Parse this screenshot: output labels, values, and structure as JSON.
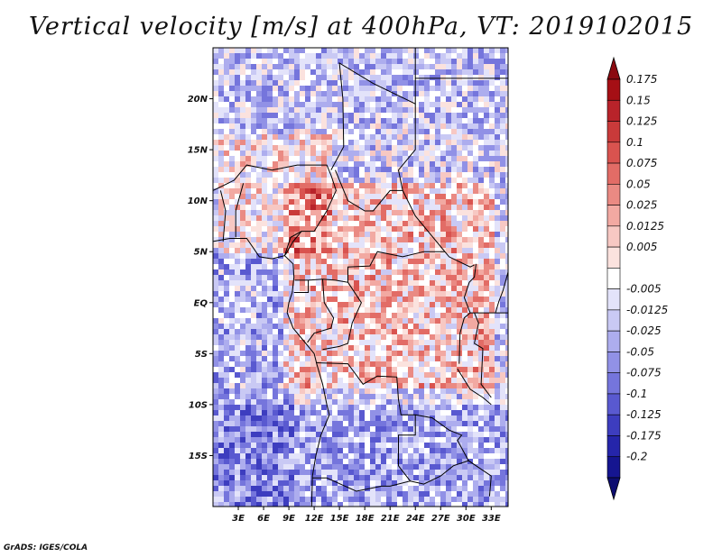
{
  "title": "Vertical velocity [m/s] at 400hPa, VT: 2019102015",
  "credit": "GrADS: IGES/COLA",
  "map": {
    "lat_range": [
      -20,
      25
    ],
    "lon_range": [
      0,
      35
    ],
    "lat_ticks": [
      {
        "value": 20,
        "label": "20N"
      },
      {
        "value": 15,
        "label": "15N"
      },
      {
        "value": 10,
        "label": "10N"
      },
      {
        "value": 5,
        "label": "5N"
      },
      {
        "value": 0,
        "label": "EQ"
      },
      {
        "value": -5,
        "label": "5S"
      },
      {
        "value": -10,
        "label": "10S"
      },
      {
        "value": -15,
        "label": "15S"
      }
    ],
    "lon_ticks": [
      {
        "value": 3,
        "label": "3E"
      },
      {
        "value": 6,
        "label": "6E"
      },
      {
        "value": 9,
        "label": "9E"
      },
      {
        "value": 12,
        "label": "12E"
      },
      {
        "value": 15,
        "label": "15E"
      },
      {
        "value": 18,
        "label": "18E"
      },
      {
        "value": 21,
        "label": "21E"
      },
      {
        "value": 24,
        "label": "24E"
      },
      {
        "value": 27,
        "label": "27E"
      },
      {
        "value": 30,
        "label": "30E"
      },
      {
        "value": 33,
        "label": "33E"
      }
    ]
  },
  "colorbar": {
    "levels": [
      {
        "label": "0.175",
        "color": "#a50f15"
      },
      {
        "label": "0.15",
        "color": "#b8232a"
      },
      {
        "label": "0.125",
        "color": "#c93a3a"
      },
      {
        "label": "0.1",
        "color": "#d9534f"
      },
      {
        "label": "0.075",
        "color": "#e26c66"
      },
      {
        "label": "0.05",
        "color": "#ea8a83"
      },
      {
        "label": "0.025",
        "color": "#f2a9a2"
      },
      {
        "label": "0.0125",
        "color": "#f7c8c3"
      },
      {
        "label": "0.005",
        "color": "#fbe2de"
      },
      {
        "label": "",
        "color": "#ffffff"
      },
      {
        "label": "-0.005",
        "color": "#e3e3fa"
      },
      {
        "label": "-0.0125",
        "color": "#c9c9f4"
      },
      {
        "label": "-0.025",
        "color": "#adadee"
      },
      {
        "label": "-0.05",
        "color": "#9191e6"
      },
      {
        "label": "-0.075",
        "color": "#7575dc"
      },
      {
        "label": "-0.1",
        "color": "#5959d0"
      },
      {
        "label": "-0.125",
        "color": "#3d3dbf"
      },
      {
        "label": "-0.175",
        "color": "#2525aa"
      },
      {
        "label": "-0.2",
        "color": "#151590"
      }
    ],
    "top_cap_color": "#8b0a10",
    "bottom_cap_color": "#0d0d70"
  }
}
